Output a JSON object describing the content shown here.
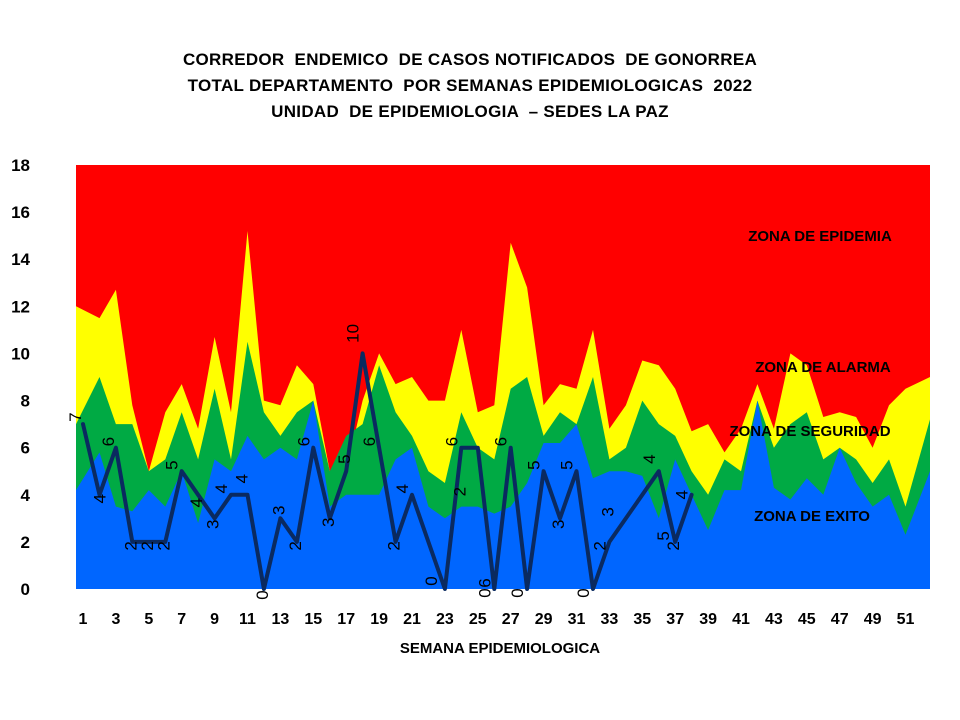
{
  "chart_data": {
    "type": "area",
    "title": [
      "CORREDOR  ENDEMICO  DE CASOS NOTIFICADOS  DE GONORREA",
      "TOTAL DEPARTAMENTO  POR SEMANAS EPIDEMIOLOGICAS  2022",
      "UNIDAD  DE EPIDEMIOLOGIA  – SEDES LA PAZ"
    ],
    "xlabel": "SEMANA EPIDEMIOLOGICA",
    "ylabel": "",
    "ylim": [
      0,
      18
    ],
    "yticks": [
      0,
      2,
      4,
      6,
      8,
      10,
      12,
      14,
      16,
      18
    ],
    "xticks": [
      1,
      3,
      5,
      7,
      9,
      11,
      13,
      15,
      17,
      19,
      21,
      23,
      25,
      27,
      29,
      31,
      33,
      35,
      37,
      39,
      41,
      43,
      45,
      47,
      49,
      51
    ],
    "x": [
      1,
      2,
      3,
      4,
      5,
      6,
      7,
      8,
      9,
      10,
      11,
      12,
      13,
      14,
      15,
      16,
      17,
      18,
      19,
      20,
      21,
      22,
      23,
      24,
      25,
      26,
      27,
      28,
      29,
      30,
      31,
      32,
      33,
      34,
      35,
      36,
      37,
      38,
      39,
      40,
      41,
      42,
      43,
      44,
      45,
      46,
      47,
      48,
      49,
      50,
      51,
      52
    ],
    "zones": [
      {
        "name": "ZONA DE EPIDEMIA",
        "color": "#ff0000",
        "ceiling": 18
      },
      {
        "name": "ZONA DE ALARMA",
        "color": "#ffff00",
        "values": [
          12,
          11.5,
          12.7,
          7.8,
          5,
          7.5,
          8.7,
          6.8,
          10.7,
          7.5,
          15.2,
          8,
          7.8,
          9.5,
          8.7,
          5,
          5,
          8,
          10,
          8.7,
          9,
          8,
          8,
          11,
          7.5,
          7.8,
          14.7,
          12.8,
          7.8,
          8.7,
          8.5,
          11,
          6.8,
          7.8,
          9.7,
          9.5,
          8.5,
          6.7,
          7,
          5.8,
          6.8,
          8.7,
          6.8,
          10,
          9.5,
          7.3,
          7.5,
          7.3,
          6,
          7.8,
          8.5,
          9
        ]
      },
      {
        "name": "ZONA DE  SEGURIDAD",
        "color": "#00aa44",
        "values": [
          7,
          9,
          7,
          7,
          5,
          5.5,
          7.5,
          5.5,
          8.5,
          5.5,
          10.5,
          7.5,
          6.5,
          7.5,
          8,
          5,
          6.5,
          7,
          9.5,
          7.5,
          6.5,
          5,
          4.5,
          7.5,
          6,
          5.5,
          8.5,
          9,
          6.5,
          7.5,
          7,
          9,
          5.5,
          6,
          8,
          7,
          6.5,
          5,
          4,
          5.5,
          5,
          8,
          6,
          7,
          7.5,
          5.5,
          6,
          5.5,
          4.5,
          5.5,
          3.5,
          7.2
        ]
      },
      {
        "name": "ZONA DE  EXITO",
        "color": "#0066ff",
        "values": [
          4.2,
          5.8,
          3.5,
          3.3,
          4.2,
          3.5,
          5,
          2.8,
          5.5,
          5,
          6.5,
          5.5,
          6,
          5.5,
          8,
          3.5,
          4,
          4,
          4,
          5.5,
          6,
          3.5,
          3,
          3.5,
          3.5,
          3.2,
          3.5,
          4.5,
          6.2,
          6.2,
          7,
          4.7,
          5,
          5,
          4.8,
          3,
          5.5,
          4,
          2.5,
          4.2,
          4.2,
          8,
          4.3,
          3.8,
          4.7,
          4,
          6,
          4.5,
          3.5,
          4,
          2.3,
          5
        ]
      }
    ],
    "series": [
      {
        "name": "",
        "color": "#0a2a60",
        "x": [
          1,
          2,
          3,
          4,
          5,
          6,
          7,
          8,
          9,
          10,
          11,
          12,
          13,
          14,
          15,
          16,
          17,
          18,
          19,
          20,
          21,
          22,
          23,
          24,
          25,
          26,
          27,
          28,
          29,
          30,
          31,
          32,
          33,
          36,
          37,
          38
        ],
        "values": [
          7,
          4,
          6,
          2,
          2,
          2,
          5,
          4,
          3,
          4,
          4,
          0,
          3,
          2,
          6,
          3,
          5,
          10,
          6,
          2,
          4,
          2,
          0,
          6,
          6,
          0,
          6,
          0,
          5,
          3,
          5,
          0,
          2,
          5,
          2,
          4
        ]
      }
    ],
    "data_labels": [
      {
        "x": 1,
        "text": "7"
      },
      {
        "x": 2,
        "text": "4"
      },
      {
        "x": 3,
        "text": "6"
      },
      {
        "x": 4,
        "text": "2"
      },
      {
        "x": 5,
        "text": "2"
      },
      {
        "x": 6,
        "text": "2"
      },
      {
        "x": 7,
        "text": "5"
      },
      {
        "x": 8,
        "text": "4"
      },
      {
        "x": 9,
        "text": "3"
      },
      {
        "x": 10,
        "text": "4"
      },
      {
        "x": 11,
        "text": "4"
      },
      {
        "x": 12,
        "text": "0"
      },
      {
        "x": 13,
        "text": "3"
      },
      {
        "x": 14,
        "text": "2"
      },
      {
        "x": 15,
        "text": "6"
      },
      {
        "x": 16,
        "text": "3"
      },
      {
        "x": 17,
        "text": "5"
      },
      {
        "x": 18,
        "text": "10"
      },
      {
        "x": 19,
        "text": "6"
      },
      {
        "x": 20,
        "text": "2"
      },
      {
        "x": 21,
        "text": "4"
      },
      {
        "x": 23,
        "text": "0"
      },
      {
        "x": 24,
        "text": "6"
      },
      {
        "x": 24,
        "text": "2"
      },
      {
        "x": 26,
        "text": "6"
      },
      {
        "x": 26,
        "text": "0"
      },
      {
        "x": 27,
        "text": "6"
      },
      {
        "x": 28,
        "text": "0"
      },
      {
        "x": 29,
        "text": "5"
      },
      {
        "x": 30,
        "text": "3"
      },
      {
        "x": 31,
        "text": "5"
      },
      {
        "x": 32,
        "text": "0"
      },
      {
        "x": 33,
        "text": "3"
      },
      {
        "x": 33,
        "text": "2"
      },
      {
        "x": 36,
        "text": "4"
      },
      {
        "x": 37,
        "text": "5"
      },
      {
        "x": 37,
        "text": "2"
      },
      {
        "x": 38,
        "text": "4"
      }
    ]
  }
}
